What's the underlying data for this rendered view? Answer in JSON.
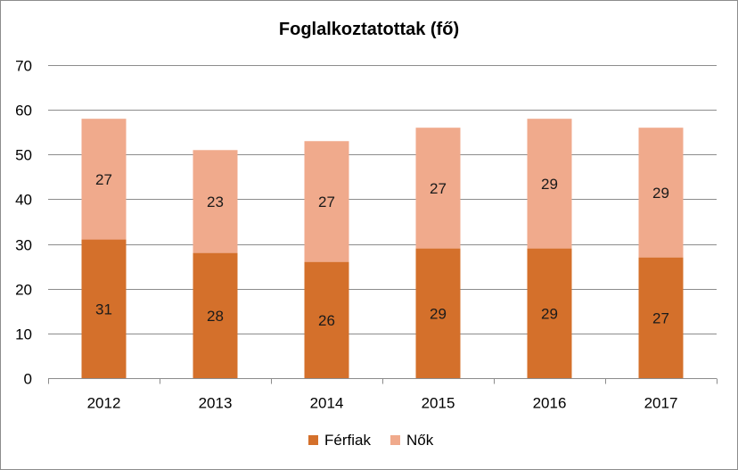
{
  "chart_data": {
    "type": "bar",
    "stacked": true,
    "title": "Foglalkoztatottak (fő)",
    "categories": [
      "2012",
      "2013",
      "2014",
      "2015",
      "2016",
      "2017"
    ],
    "series": [
      {
        "name": "Férfiak",
        "values": [
          31,
          28,
          26,
          29,
          29,
          27
        ],
        "color": "#d4702b"
      },
      {
        "name": "Nők",
        "values": [
          27,
          23,
          27,
          27,
          29,
          29
        ],
        "color": "#f0aa8c"
      }
    ],
    "ylim": [
      0,
      70
    ],
    "yticks": [
      "0",
      "10",
      "20",
      "30",
      "40",
      "50",
      "60",
      "70"
    ],
    "grid": true,
    "legend": "bottom"
  }
}
